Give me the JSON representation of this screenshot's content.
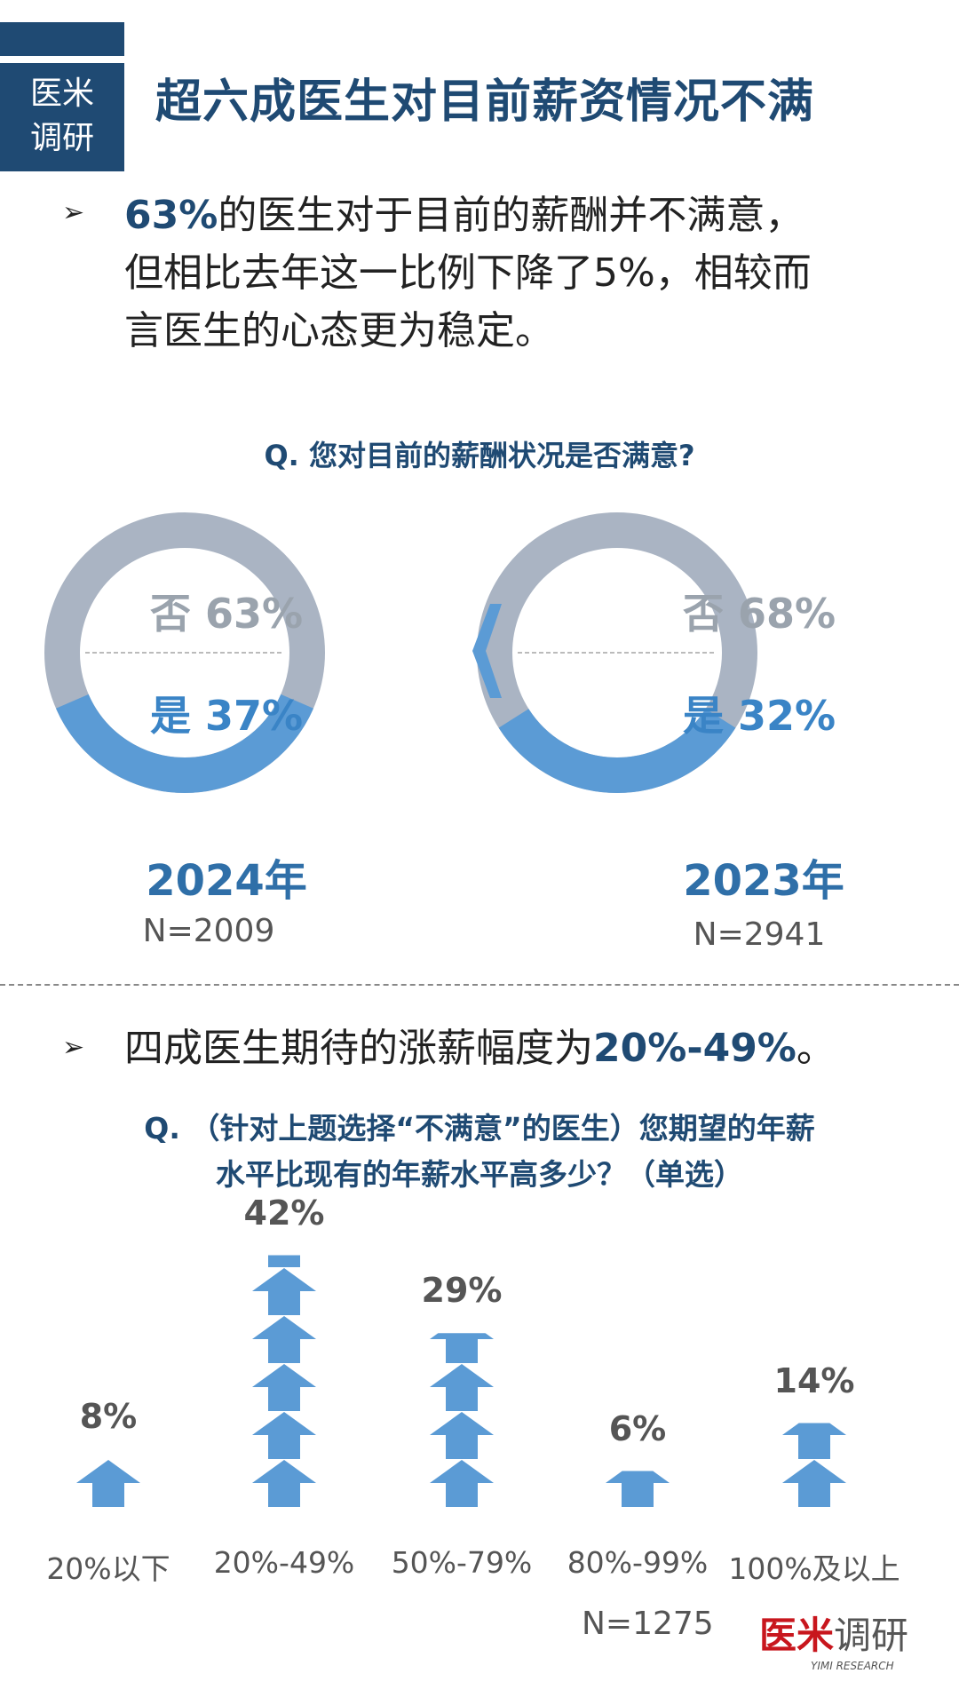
{
  "header": {
    "badge_line1": "医米",
    "badge_line2": "调研",
    "title": "超六成医生对目前薪资情况不满"
  },
  "bullet1": {
    "icon": "triangle-arrow-icon",
    "highlight": "63%",
    "line1_rest": "的医生对于目前的薪酬并不满意，",
    "line2": "但相比去年这一比例下降了5%，相较而",
    "line3": "言医生的心态更为稳定。"
  },
  "bullet2": {
    "icon": "triangle-arrow-icon",
    "text": "四成医生期待的涨薪幅度为",
    "highlight": "20%-49%",
    "suffix": "。"
  },
  "colors": {
    "brand": "#1f4a73",
    "blue": "#5b9bd5",
    "gray": "#aab4c3",
    "logo_red": "#c8161d"
  },
  "chart_data": [
    {
      "type": "pie",
      "title": "Q. 您对目前的薪酬状况是否满意?",
      "comparison_icon": "chevron-left-icon",
      "charts": [
        {
          "year": "2024年",
          "n": "N=2009",
          "slices": [
            {
              "label": "否",
              "value": 63,
              "text": "否 63%"
            },
            {
              "label": "是",
              "value": 37,
              "text": "是 37%"
            }
          ]
        },
        {
          "year": "2023年",
          "n": "N=2941",
          "slices": [
            {
              "label": "否",
              "value": 68,
              "text": "否 68%"
            },
            {
              "label": "是",
              "value": 32,
              "text": "是 32%"
            }
          ]
        }
      ]
    },
    {
      "type": "bar",
      "title_line1": "Q. （针对上题选择“不满意”的医生）您期望的年薪",
      "title_line2": "水平比现有的年薪水平高多少？（单选）",
      "categories": [
        "20%以下",
        "20%-49%",
        "50%-79%",
        "80%-99%",
        "100%及以上"
      ],
      "values": [
        8,
        42,
        29,
        6,
        14
      ],
      "labels": [
        "8%",
        "42%",
        "29%",
        "6%",
        "14%"
      ],
      "n": "N=1275"
    }
  ],
  "logo": {
    "cn_red": "医米",
    "cn_gray": "调研",
    "en": "YIMI RESEARCH"
  }
}
